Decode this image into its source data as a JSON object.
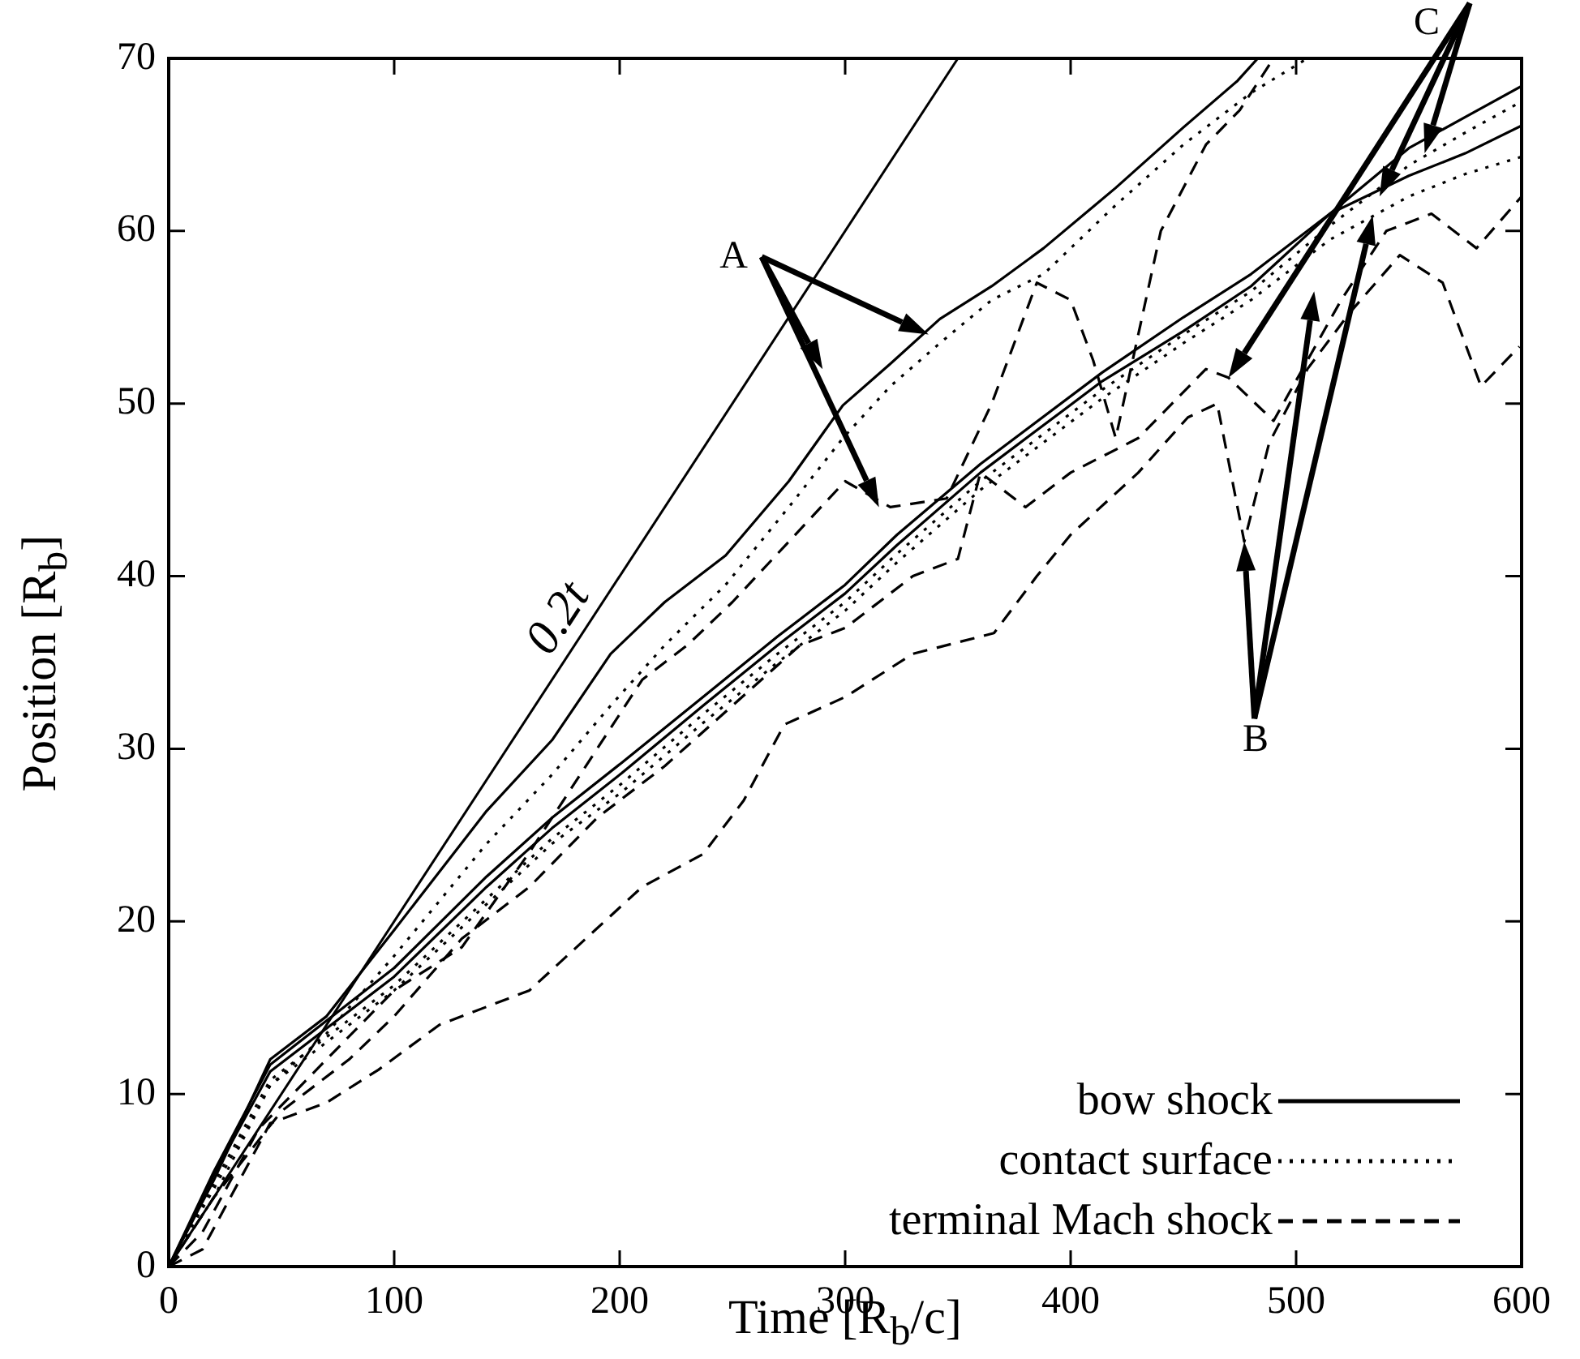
{
  "chart_data": {
    "type": "line",
    "xlabel": "Time [R$_{b}$/c]",
    "ylabel": "Position [R$_{b}$]",
    "xlim": [
      0,
      600
    ],
    "xticks": [
      0,
      100,
      200,
      300,
      400,
      500,
      600
    ],
    "ylim": [
      0,
      70
    ],
    "yticks": [
      0,
      10,
      20,
      30,
      40,
      50,
      60,
      70
    ],
    "legend": "bottom right",
    "marker": "none",
    "annotations": [
      "A",
      "B",
      {
        "text": "C",
        "x": 557,
        "y": 64.5
      }
    ],
    "series": [
      {
        "name": "0.2t",
        "color": "#000000",
        "line_style": "solid",
        "x": [
          0,
          350
        ],
        "values": [
          0,
          70
        ]
      },
      {
        "name": "bow shock",
        "color": "#000000",
        "line_style": "solid",
        "x": [
          0,
          20,
          45,
          70,
          100,
          141,
          170,
          196,
          220,
          247,
          275,
          299,
          320,
          342,
          365,
          388,
          420,
          450,
          474,
          483
        ],
        "values": [
          0,
          5,
          12,
          14.5,
          19.5,
          26.4,
          30.5,
          35.5,
          38.5,
          41.2,
          45.5,
          49.9,
          52.3,
          54.9,
          56.8,
          59,
          62.5,
          66,
          68.7,
          70
        ]
      },
      {
        "name": "contact surface",
        "color": "#000000",
        "line_style": "dotted",
        "x": [
          0,
          20,
          45,
          70,
          100,
          141,
          170,
          196,
          220,
          247,
          275,
          299,
          320,
          342,
          365,
          388,
          420,
          450,
          480,
          505
        ],
        "values": [
          0,
          4,
          10.5,
          13.5,
          18,
          24.5,
          28.5,
          32.5,
          36,
          39.5,
          44,
          48,
          51,
          53.5,
          56,
          57.5,
          61.5,
          65,
          68,
          70
        ]
      },
      {
        "name": "terminal Mach shock",
        "color": "#000000",
        "line_style": "dashed",
        "x": [
          0,
          15,
          40,
          70,
          100,
          130,
          160,
          190,
          210,
          230,
          250,
          275,
          300,
          320,
          345,
          365,
          385,
          400,
          410,
          420,
          440,
          460,
          475,
          490
        ],
        "values": [
          0,
          2,
          8,
          12,
          16,
          18.5,
          24,
          30,
          34,
          36,
          38.5,
          42,
          45.5,
          44,
          44.5,
          50,
          57,
          56,
          52.5,
          48,
          60,
          65,
          67,
          70
        ]
      },
      {
        "color": "#000000",
        "line_style": "solid",
        "x": [
          0,
          20,
          45,
          100,
          141,
          170,
          201,
          237,
          270,
          300,
          323,
          360,
          414,
          450,
          480,
          515,
          550,
          575,
          600
        ],
        "values": [
          0,
          5.5,
          11.7,
          17.3,
          22.6,
          26,
          29.2,
          33,
          36.5,
          39.5,
          42.4,
          46.5,
          51.8,
          55,
          57.5,
          61,
          63.2,
          64.5,
          66.1
        ]
      },
      {
        "color": "#000000",
        "line_style": "dotted",
        "x": [
          0,
          20,
          45,
          100,
          141,
          170,
          201,
          237,
          270,
          300,
          323,
          360,
          414,
          450,
          480,
          515,
          550,
          575,
          600
        ],
        "values": [
          0,
          4.5,
          10.5,
          16,
          21,
          24.5,
          27.5,
          31.5,
          35,
          38,
          40.8,
          45,
          50.3,
          53.5,
          56,
          59.5,
          62,
          63.3,
          64.3
        ]
      },
      {
        "color": "#000000",
        "line_style": "dashed",
        "x": [
          0,
          15,
          45,
          70,
          93,
          120,
          160,
          185,
          210,
          237,
          255,
          273,
          300,
          330,
          366,
          385,
          400,
          430,
          452,
          465,
          477,
          488,
          505,
          524,
          546,
          565,
          582,
          599
        ],
        "values": [
          0,
          1,
          8.3,
          9.5,
          11.4,
          14,
          16,
          19,
          22,
          23.9,
          27,
          31.4,
          33,
          35.5,
          36.7,
          40,
          42.4,
          46,
          49.2,
          50,
          42,
          47.7,
          52,
          55.3,
          58.6,
          57,
          51,
          53.3
        ]
      },
      {
        "color": "#000000",
        "line_style": "solid",
        "x": [
          0,
          20,
          45,
          100,
          141,
          170,
          201,
          237,
          270,
          300,
          323,
          360,
          414,
          450,
          480,
          515,
          550,
          575,
          600
        ],
        "values": [
          0,
          5.3,
          11.3,
          16.8,
          22,
          25.4,
          28.6,
          32.5,
          36,
          39,
          41.8,
          46,
          51.3,
          54.2,
          56.8,
          61,
          64.8,
          66.6,
          68.4
        ]
      },
      {
        "color": "#000000",
        "line_style": "dotted",
        "x": [
          0,
          20,
          45,
          100,
          141,
          170,
          201,
          237,
          270,
          300,
          323,
          360,
          414,
          450,
          480,
          515,
          550,
          575,
          600
        ],
        "values": [
          0,
          4.8,
          10.8,
          16.3,
          21.3,
          24.8,
          28,
          32,
          35.5,
          38.5,
          41.3,
          45.5,
          50.8,
          54,
          56.5,
          60.3,
          63.8,
          65.7,
          67.5
        ]
      },
      {
        "color": "#000000",
        "line_style": "dashed",
        "x": [
          0,
          20,
          50,
          80,
          100,
          130,
          160,
          190,
          220,
          250,
          280,
          300,
          330,
          350,
          360,
          380,
          400,
          430,
          460,
          470,
          490,
          520,
          540,
          560,
          580,
          600
        ],
        "values": [
          0,
          4,
          9,
          12,
          14.5,
          19,
          22,
          26,
          29,
          32.5,
          36,
          37,
          40,
          41,
          46,
          44,
          46,
          48,
          52,
          51.5,
          49,
          56,
          60,
          61,
          59,
          62
        ]
      }
    ]
  }
}
